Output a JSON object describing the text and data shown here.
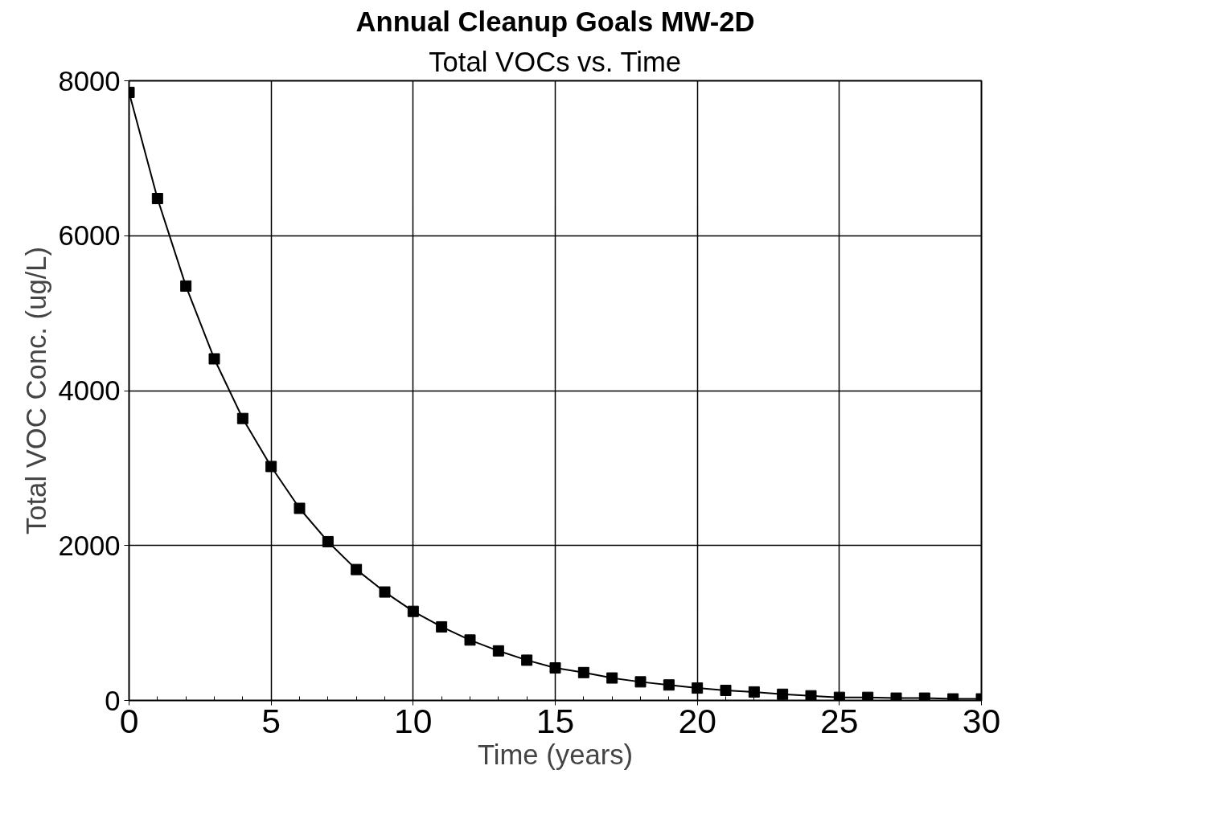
{
  "chart_data": {
    "type": "line",
    "title": "Annual Cleanup Goals MW-2D",
    "subtitle": "Total VOCs vs. Time",
    "xlabel": "Time (years)",
    "ylabel": "Total VOC Conc. (ug/L)",
    "x": [
      0,
      1,
      2,
      3,
      4,
      5,
      6,
      7,
      8,
      9,
      10,
      11,
      12,
      13,
      14,
      15,
      16,
      17,
      18,
      19,
      20,
      21,
      22,
      23,
      24,
      25,
      26,
      27,
      28,
      29,
      30
    ],
    "series": [
      {
        "color": "#000000",
        "values": [
          7850,
          6480,
          5350,
          4410,
          3640,
          3020,
          2480,
          2050,
          1690,
          1400,
          1150,
          950,
          780,
          640,
          520,
          420,
          360,
          290,
          240,
          200,
          160,
          130,
          110,
          80,
          60,
          40,
          40,
          30,
          30,
          20,
          20
        ]
      }
    ],
    "xlim": [
      0,
      30
    ],
    "ylim": [
      0,
      8000
    ],
    "xticks": [
      0,
      5,
      10,
      15,
      20,
      25,
      30
    ],
    "yticks": [
      0,
      2000,
      4000,
      6000,
      8000
    ],
    "grid": true,
    "marker": "square",
    "line_style": "solid"
  }
}
